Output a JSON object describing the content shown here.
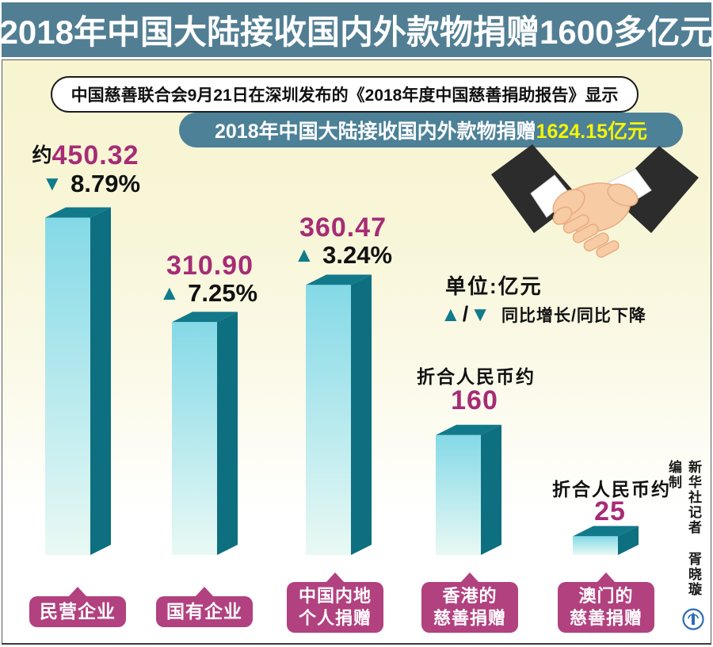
{
  "title": "2018年中国大陆接收国内外款物捐赠1600多亿元",
  "intro_text": "中国慈善联合会9月21日在深圳发布的《2018年度中国慈善捐助报告》显示",
  "banner": {
    "prefix": "2018年中国大陆接收国内外款物捐赠",
    "highlight": "1624.15亿元"
  },
  "legend": {
    "unit_label": "单位:亿元",
    "slash": "/",
    "key_text": "同比增长/同比下降"
  },
  "icons": {
    "up_triangle": "▲",
    "down_triangle": "▼",
    "handshake": "handshake-illustration",
    "publisher_logo": "xinhua-emblem"
  },
  "credit": "新华社记者 胥晓璇 编制",
  "colors": {
    "title_bar": "#517e93",
    "banner": "#4c8197",
    "banner_highlight": "#f4f408",
    "background_top": "#f7f4d0",
    "value_magenta": "#a62c76",
    "label_box_magenta": "#b2417f",
    "triangle_teal": "#0f7b8b",
    "bar_front_top": "#84d9e7",
    "bar_front_bottom": "#e9f9f4",
    "bar_side": "#0d6f7f",
    "bar_top": "#11798a"
  },
  "chart_data": {
    "type": "bar",
    "title": "2018年中国大陆接收国内外款物捐赠",
    "unit": "亿元",
    "categories": [
      "民营企业",
      "国有企业",
      "中国内地个人捐赠",
      "香港的慈善捐赠",
      "澳门的慈善捐赠"
    ],
    "values": [
      450.32,
      310.9,
      360.47,
      160,
      25
    ],
    "ylim": [
      0,
      480
    ],
    "grid": false,
    "legend_position": "middle-right",
    "bars": [
      {
        "name": "民营企业",
        "label_lines": [
          "民营企业"
        ],
        "value_prefix": "约",
        "value_label": "450.32",
        "change": "8.79%",
        "direction": "down",
        "value": 450.32
      },
      {
        "name": "国有企业",
        "label_lines": [
          "国有企业"
        ],
        "value_label": "310.90",
        "change": "7.25%",
        "direction": "up",
        "value": 310.9
      },
      {
        "name": "中国内地个人捐赠",
        "label_lines": [
          "中国内地",
          "个人捐赠"
        ],
        "value_label": "360.47",
        "change": "3.24%",
        "direction": "up",
        "value": 360.47
      },
      {
        "name": "香港的慈善捐赠",
        "label_lines": [
          "香港的",
          "慈善捐赠"
        ],
        "note": "折合人民币约",
        "value_label": "160",
        "value": 160
      },
      {
        "name": "澳门的慈善捐赠",
        "label_lines": [
          "澳门的",
          "慈善捐赠"
        ],
        "note": "折合人民币约",
        "value_label": "25",
        "value": 25
      }
    ]
  }
}
